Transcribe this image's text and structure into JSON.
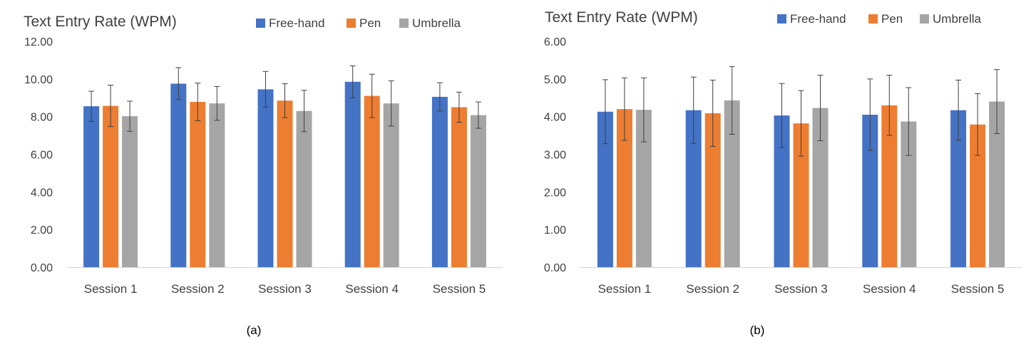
{
  "colors": {
    "Free-hand": "#4472C4",
    "Pen": "#ED7D31",
    "Umbrella": "#A5A5A5",
    "error_bar": "#404040",
    "axis": "#D9D9D9"
  },
  "chart_data": [
    {
      "type": "bar",
      "title": "Text Entry Rate (WPM)",
      "caption": "(a)",
      "categories": [
        "Session 1",
        "Session 2",
        "Session 3",
        "Session 4",
        "Session 5"
      ],
      "series": [
        {
          "name": "Free-hand",
          "values": [
            8.55,
            9.75,
            9.45,
            9.85,
            9.05
          ],
          "errors": [
            0.8,
            0.85,
            0.95,
            0.85,
            0.75
          ]
        },
        {
          "name": "Pen",
          "values": [
            8.57,
            8.78,
            8.85,
            9.1,
            8.5
          ],
          "errors": [
            1.1,
            1.0,
            0.9,
            1.15,
            0.8
          ]
        },
        {
          "name": "Umbrella",
          "values": [
            8.02,
            8.7,
            8.3,
            8.7,
            8.08
          ],
          "errors": [
            0.8,
            0.9,
            1.1,
            1.2,
            0.7
          ]
        }
      ],
      "ylim": [
        0,
        12
      ],
      "yticks": [
        "0.00",
        "2.00",
        "4.00",
        "6.00",
        "8.00",
        "10.00",
        "12.00"
      ],
      "ytick_values": [
        0,
        2,
        4,
        6,
        8,
        10,
        12
      ],
      "legend": "top-right",
      "grid": false
    },
    {
      "type": "bar",
      "title": "Text Entry Rate (WPM)",
      "caption": "(b)",
      "categories": [
        "Session 1",
        "Session 2",
        "Session 3",
        "Session 4",
        "Session 5"
      ],
      "series": [
        {
          "name": "Free-hand",
          "values": [
            4.13,
            4.17,
            4.03,
            4.05,
            4.17
          ],
          "errors": [
            0.85,
            0.88,
            0.85,
            0.95,
            0.8
          ]
        },
        {
          "name": "Pen",
          "values": [
            4.2,
            4.09,
            3.82,
            4.3,
            3.79
          ],
          "errors": [
            0.83,
            0.88,
            0.87,
            0.8,
            0.82
          ]
        },
        {
          "name": "Umbrella",
          "values": [
            4.18,
            4.43,
            4.23,
            3.87,
            4.4
          ],
          "errors": [
            0.85,
            0.9,
            0.87,
            0.9,
            0.85
          ]
        }
      ],
      "ylim": [
        0,
        6
      ],
      "yticks": [
        "0.00",
        "1.00",
        "2.00",
        "3.00",
        "4.00",
        "5.00",
        "6.00"
      ],
      "ytick_values": [
        0,
        1,
        2,
        3,
        4,
        5,
        6
      ],
      "legend": "top-right",
      "grid": false
    }
  ]
}
